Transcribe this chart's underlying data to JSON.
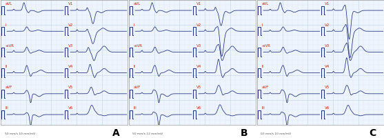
{
  "panel_labels": [
    "A",
    "B",
    "C"
  ],
  "lead_labels_left": [
    "aVL",
    "I",
    "-aVR",
    "II",
    "aVF",
    "III"
  ],
  "lead_labels_right": [
    "V1",
    "V2",
    "V3",
    "V4",
    "V5",
    "V6"
  ],
  "grid_color_minor": "#dde8f5",
  "grid_color_major": "#c8d8ee",
  "bg_color": "#eef4fc",
  "line_color": "#1a2a7a",
  "label_color_red": "#cc2200",
  "cal_pulse_color": "#1a2a7a",
  "border_color": "#aaaaaa",
  "bottom_text_A": "50 mm/s 10 mm/mV",
  "bottom_text_B": "50 mm/s 12 mm/mV",
  "bottom_text_C": "50 mm/s 10 mm/mV",
  "font_size_label": 4.0,
  "font_size_panel": 10,
  "font_size_bottom": 3.2
}
